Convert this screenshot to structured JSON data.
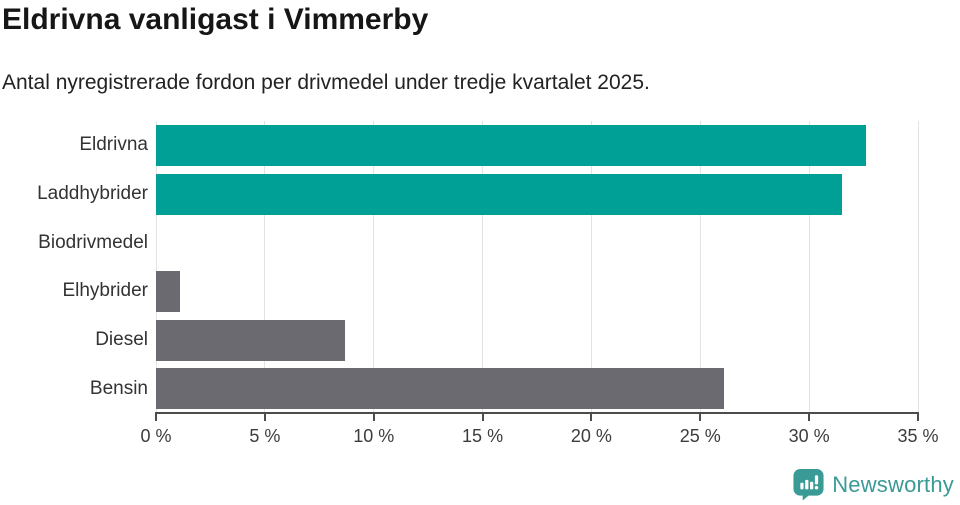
{
  "chart_data": {
    "type": "bar",
    "orientation": "horizontal",
    "title": "Eldrivna vanligast i Vimmerby",
    "subtitle": "Antal nyregistrerade fordon per drivmedel under tredje kvartalet 2025.",
    "categories": [
      "Eldrivna",
      "Laddhybrider",
      "Biodrivmedel",
      "Elhybrider",
      "Diesel",
      "Bensin"
    ],
    "values": [
      32.6,
      31.5,
      0,
      1.1,
      8.7,
      26.1
    ],
    "unit": "%",
    "xlim": [
      0,
      35
    ],
    "xticks": [
      0,
      5,
      10,
      15,
      20,
      25,
      30,
      35
    ],
    "xtick_labels": [
      "0 %",
      "5 %",
      "10 %",
      "15 %",
      "20 %",
      "25 %",
      "30 %",
      "35 %"
    ],
    "bar_colors": [
      "#00a096",
      "#00a096",
      "#6a6a70",
      "#6a6a70",
      "#6a6a70",
      "#6a6a70"
    ],
    "grid": true,
    "legend": "none",
    "colors": {
      "highlight": "#00a096",
      "default": "#6a6a70",
      "gridline": "#e3e3e3",
      "axis": "#4c4c4c",
      "title": "#161616",
      "subtitle": "#222222",
      "tick_text": "#3c3c3c",
      "category_text": "#333333"
    }
  },
  "footer": {
    "brand": "Newsworthy",
    "brand_color": "#3a9a96",
    "logo_icon": "speech-bubble-bar-chart-exclamation"
  }
}
